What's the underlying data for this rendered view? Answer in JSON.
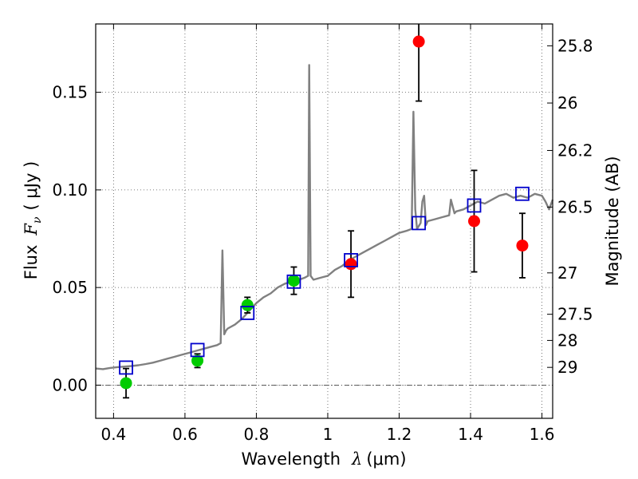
{
  "chart_data": {
    "type": "scatter",
    "xlabel_text": "Wavelength",
    "xlabel_symbol": "λ",
    "xlabel_unit": "(μm)",
    "ylabel_text": "Flux",
    "ylabel_symbol": "F",
    "ylabel_subscript": "ν",
    "ylabel_unit": "( μJy )",
    "y2label": "Magnitude (AB)",
    "xlim": [
      0.35,
      1.63
    ],
    "ylim": [
      -0.017,
      0.185
    ],
    "grid": true,
    "x_ticks": [
      0.4,
      0.6,
      0.8,
      1.0,
      1.2,
      1.4,
      1.6
    ],
    "x_tick_labels": [
      "0.4",
      "0.6",
      "0.8",
      "1",
      "1.2",
      "1.4",
      "1.6"
    ],
    "y_ticks": [
      0.0,
      0.05,
      0.1,
      0.15
    ],
    "y_tick_labels": [
      "0.00",
      "0.05",
      "0.10",
      "0.15"
    ],
    "mag_ticks": [
      {
        "label": "25.8",
        "flux": 0.1738
      },
      {
        "label": "26",
        "flux": 0.1445
      },
      {
        "label": "26.2",
        "flux": 0.1202
      },
      {
        "label": "26.5",
        "flux": 0.0912
      },
      {
        "label": "27",
        "flux": 0.0575
      },
      {
        "label": "27.5",
        "flux": 0.0363
      },
      {
        "label": "28",
        "flux": 0.0229
      },
      {
        "label": "29",
        "flux": 0.0091
      }
    ],
    "model_spectrum": {
      "color": "#808080",
      "x": [
        0.35,
        0.37,
        0.39,
        0.41,
        0.43,
        0.45,
        0.47,
        0.49,
        0.51,
        0.53,
        0.55,
        0.57,
        0.59,
        0.61,
        0.63,
        0.65,
        0.67,
        0.69,
        0.7,
        0.705,
        0.71,
        0.715,
        0.72,
        0.74,
        0.76,
        0.78,
        0.8,
        0.82,
        0.84,
        0.86,
        0.88,
        0.9,
        0.92,
        0.935,
        0.945,
        0.948,
        0.952,
        0.96,
        0.98,
        1.0,
        1.02,
        1.04,
        1.06,
        1.08,
        1.1,
        1.12,
        1.14,
        1.16,
        1.18,
        1.2,
        1.22,
        1.235,
        1.24,
        1.245,
        1.25,
        1.26,
        1.265,
        1.27,
        1.275,
        1.28,
        1.3,
        1.32,
        1.34,
        1.345,
        1.355,
        1.36,
        1.38,
        1.4,
        1.42,
        1.44,
        1.46,
        1.48,
        1.5,
        1.52,
        1.54,
        1.56,
        1.58,
        1.6,
        1.61,
        1.62,
        1.63
      ],
      "y": [
        0.0085,
        0.0082,
        0.0088,
        0.0092,
        0.0095,
        0.0098,
        0.0102,
        0.0108,
        0.0115,
        0.0125,
        0.0135,
        0.0145,
        0.0155,
        0.0165,
        0.0175,
        0.0185,
        0.0195,
        0.0205,
        0.0215,
        0.069,
        0.026,
        0.028,
        0.029,
        0.031,
        0.034,
        0.038,
        0.042,
        0.045,
        0.047,
        0.05,
        0.052,
        0.053,
        0.054,
        0.055,
        0.056,
        0.164,
        0.056,
        0.054,
        0.055,
        0.056,
        0.059,
        0.061,
        0.064,
        0.066,
        0.068,
        0.07,
        0.072,
        0.074,
        0.076,
        0.078,
        0.079,
        0.08,
        0.14,
        0.09,
        0.08,
        0.083,
        0.094,
        0.097,
        0.082,
        0.084,
        0.085,
        0.086,
        0.087,
        0.095,
        0.088,
        0.089,
        0.09,
        0.092,
        0.094,
        0.093,
        0.095,
        0.097,
        0.098,
        0.096,
        0.097,
        0.096,
        0.098,
        0.097,
        0.094,
        0.09,
        0.095
      ]
    },
    "model_photometry": {
      "color": "#0000cc",
      "x": [
        0.435,
        0.635,
        0.775,
        0.905,
        1.065,
        1.255,
        1.41,
        1.545
      ],
      "y": [
        0.009,
        0.018,
        0.037,
        0.053,
        0.064,
        0.083,
        0.092,
        0.098
      ]
    },
    "optical_points": {
      "color": "#00cc00",
      "x": [
        0.435,
        0.635,
        0.775,
        0.905
      ],
      "y": [
        0.001,
        0.0125,
        0.041,
        0.0535
      ],
      "err": [
        0.0075,
        0.0035,
        0.004,
        0.007
      ]
    },
    "nir_points": {
      "color": "#ff0000",
      "x": [
        1.065,
        1.255,
        1.41,
        1.545
      ],
      "y": [
        0.062,
        0.176,
        0.084,
        0.0715
      ],
      "err": [
        0.017,
        0.0305,
        0.026,
        0.0165
      ]
    },
    "errorbar_color": "#000000",
    "zero_line": 0.0
  }
}
